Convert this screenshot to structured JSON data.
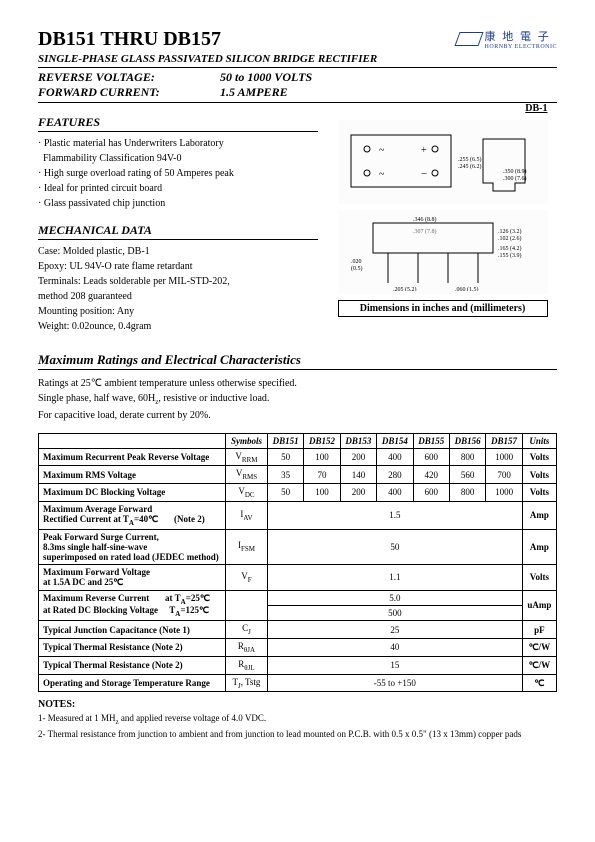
{
  "header": {
    "title": "DB151 THRU DB157",
    "subtitle": "SINGLE-PHASE GLASS PASSIVATED SILICON BRIDGE RECTIFIER",
    "reverse_voltage_label": "REVERSE VOLTAGE:",
    "reverse_voltage_value": "50 to 1000 VOLTS",
    "forward_current_label": "FORWARD CURRENT:",
    "forward_current_value": "1.5 AMPERE"
  },
  "logo": {
    "cn": "康 地 電 子",
    "en": "HORNBY ELECTRONIC"
  },
  "features": {
    "heading": "FEATURES",
    "items": [
      "· Plastic material has Underwriters Laboratory",
      "  Flammability Classification 94V-0",
      "· High surge overload rating of 50 Amperes peak",
      "· Ideal for printed circuit board",
      "· Glass passivated chip junction"
    ]
  },
  "package_label": "DB-1",
  "mechanical": {
    "heading": "MECHANICAL DATA",
    "lines": [
      "Case: Molded plastic, DB-1",
      "Epoxy: UL 94V-O rate flame retardant",
      "Terminals: Leads solderable per MIL-STD-202,",
      "method 208 guaranteed",
      "Mounting position: Any",
      "Weight: 0.02ounce, 0.4gram"
    ]
  },
  "dim_caption": "Dimensions in inches and (millimeters)",
  "ratings": {
    "heading": "Maximum Ratings and Electrical Characteristics",
    "cond1": "Ratings at 25℃ ambient temperature unless otherwise specified.",
    "cond2": "Single phase, half wave, 60Hz, resistive or inductive load.",
    "cond3": "For capacitive load, derate current by 20%.",
    "columns": [
      "Symbols",
      "DB151",
      "DB152",
      "DB153",
      "DB154",
      "DB155",
      "DB156",
      "DB157",
      "Units"
    ],
    "rows": [
      {
        "param": "Maximum Recurrent Peak Reverse Voltage",
        "sym": "V_RRM",
        "vals": [
          "50",
          "100",
          "200",
          "400",
          "600",
          "800",
          "1000"
        ],
        "unit": "Volts"
      },
      {
        "param": "Maximum RMS Voltage",
        "sym": "V_RMS",
        "vals": [
          "35",
          "70",
          "140",
          "280",
          "420",
          "560",
          "700"
        ],
        "unit": "Volts"
      },
      {
        "param": "Maximum DC Blocking Voltage",
        "sym": "V_DC",
        "vals": [
          "50",
          "100",
          "200",
          "400",
          "600",
          "800",
          "1000"
        ],
        "unit": "Volts"
      },
      {
        "param": "Maximum Average Forward<br>Rectified Current at T<sub>A</sub>=40℃ &nbsp;&nbsp;&nbsp;&nbsp;&nbsp;&nbsp;(Note 2)",
        "sym": "I_(AV)",
        "span": "1.5",
        "unit": "Amp"
      },
      {
        "param": "Peak Forward Surge Current,<br>8.3ms single half-sine-wave<br>superimposed on rated load (JEDEC method)",
        "sym": "I_FSM",
        "span": "50",
        "unit": "Amp"
      },
      {
        "param": "Maximum Forward Voltage<br>at 1.5A DC and 25℃",
        "sym": "V_F",
        "span": "1.1",
        "unit": "Volts"
      },
      {
        "param": "Maximum Reverse Current &nbsp;&nbsp;&nbsp;&nbsp;&nbsp;&nbsp;at T<sub>A</sub>=25℃<br>at Rated DC Blocking Voltage &nbsp;&nbsp;&nbsp;&nbsp;T<sub>A</sub>=125℃",
        "sym": "",
        "span2": [
          "5.0",
          "500"
        ],
        "unit": "uAmp"
      },
      {
        "param": "Typical Junction Capacitance (Note 1)",
        "sym": "C_J",
        "span": "25",
        "unit": "pF"
      },
      {
        "param": "Typical Thermal Resistance (Note 2)",
        "sym": "R_θJA",
        "span": "40",
        "unit": "℃/W"
      },
      {
        "param": "Typical Thermal Resistance (Note 2)",
        "sym": "R_θJL",
        "span": "15",
        "unit": "℃/W"
      },
      {
        "param": "Operating and Storage Temperature Range",
        "sym": "T_J, Tstg",
        "span": "-55 to +150",
        "unit": "℃"
      }
    ]
  },
  "notes": {
    "heading": "NOTES:",
    "n1": "1- Measured at 1 MHz and applied reverse voltage of 4.0 VDC.",
    "n2": "2- Thermal resistance from junction to ambient and from junction to lead mounted on P.C.B. with 0.5 x 0.5\" (13 x 13mm) copper pads"
  }
}
